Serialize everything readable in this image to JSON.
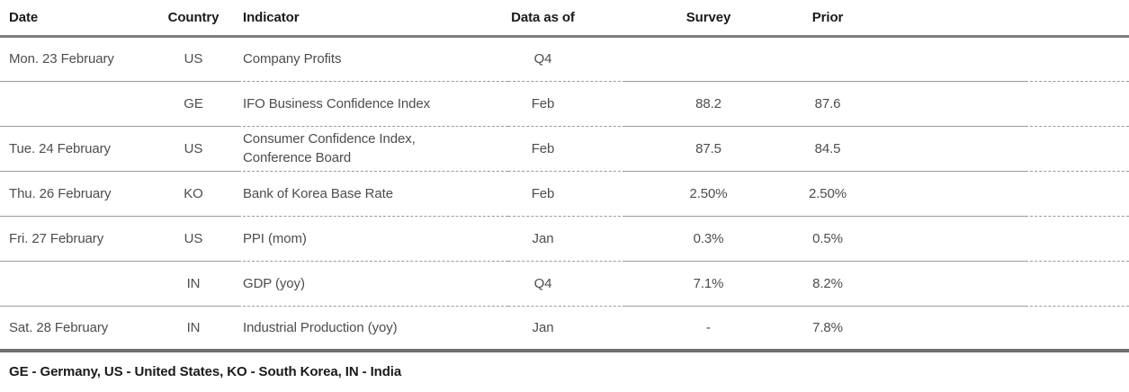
{
  "table": {
    "columns": [
      {
        "key": "date",
        "label": "Date"
      },
      {
        "key": "country",
        "label": "Country"
      },
      {
        "key": "indicator",
        "label": "Indicator"
      },
      {
        "key": "data_as_of",
        "label": "Data as of"
      },
      {
        "key": "survey",
        "label": "Survey"
      },
      {
        "key": "prior",
        "label": "Prior"
      }
    ],
    "rows": [
      {
        "date": "Mon. 23 February",
        "country": "US",
        "indicator": "Company Profits",
        "data_as_of": "Q4",
        "survey": "",
        "prior": ""
      },
      {
        "date": "",
        "country": "GE",
        "indicator": "IFO Business Confidence Index",
        "data_as_of": "Feb",
        "survey": "88.2",
        "prior": "87.6"
      },
      {
        "date": "Tue. 24 February",
        "country": "US",
        "indicator": "Consumer Confidence Index, Conference Board",
        "data_as_of": "Feb",
        "survey": "87.5",
        "prior": "84.5"
      },
      {
        "date": "Thu. 26 February",
        "country": "KO",
        "indicator": "Bank of Korea Base Rate",
        "data_as_of": "Feb",
        "survey": "2.50%",
        "prior": "2.50%"
      },
      {
        "date": "Fri. 27 February",
        "country": "US",
        "indicator": "PPI (mom)",
        "data_as_of": "Jan",
        "survey": "0.3%",
        "prior": "0.5%"
      },
      {
        "date": "",
        "country": "IN",
        "indicator": "GDP (yoy)",
        "data_as_of": "Q4",
        "survey": "7.1%",
        "prior": "8.2%"
      },
      {
        "date": "Sat. 28 February",
        "country": "IN",
        "indicator": "Industrial Production (yoy)",
        "data_as_of": "Jan",
        "survey": "-",
        "prior": "7.8%"
      }
    ],
    "footnote": "GE - Germany, US - United States, KO - South Korea, IN - India"
  },
  "colors": {
    "header_text": "#1a1a1a",
    "body_text": "#4d4d4d",
    "thick_rule_top": "#7d7d7d",
    "thick_rule_bottom": "#6e6e6e",
    "thin_rule": "#9a9a9a",
    "background": "#ffffff"
  }
}
